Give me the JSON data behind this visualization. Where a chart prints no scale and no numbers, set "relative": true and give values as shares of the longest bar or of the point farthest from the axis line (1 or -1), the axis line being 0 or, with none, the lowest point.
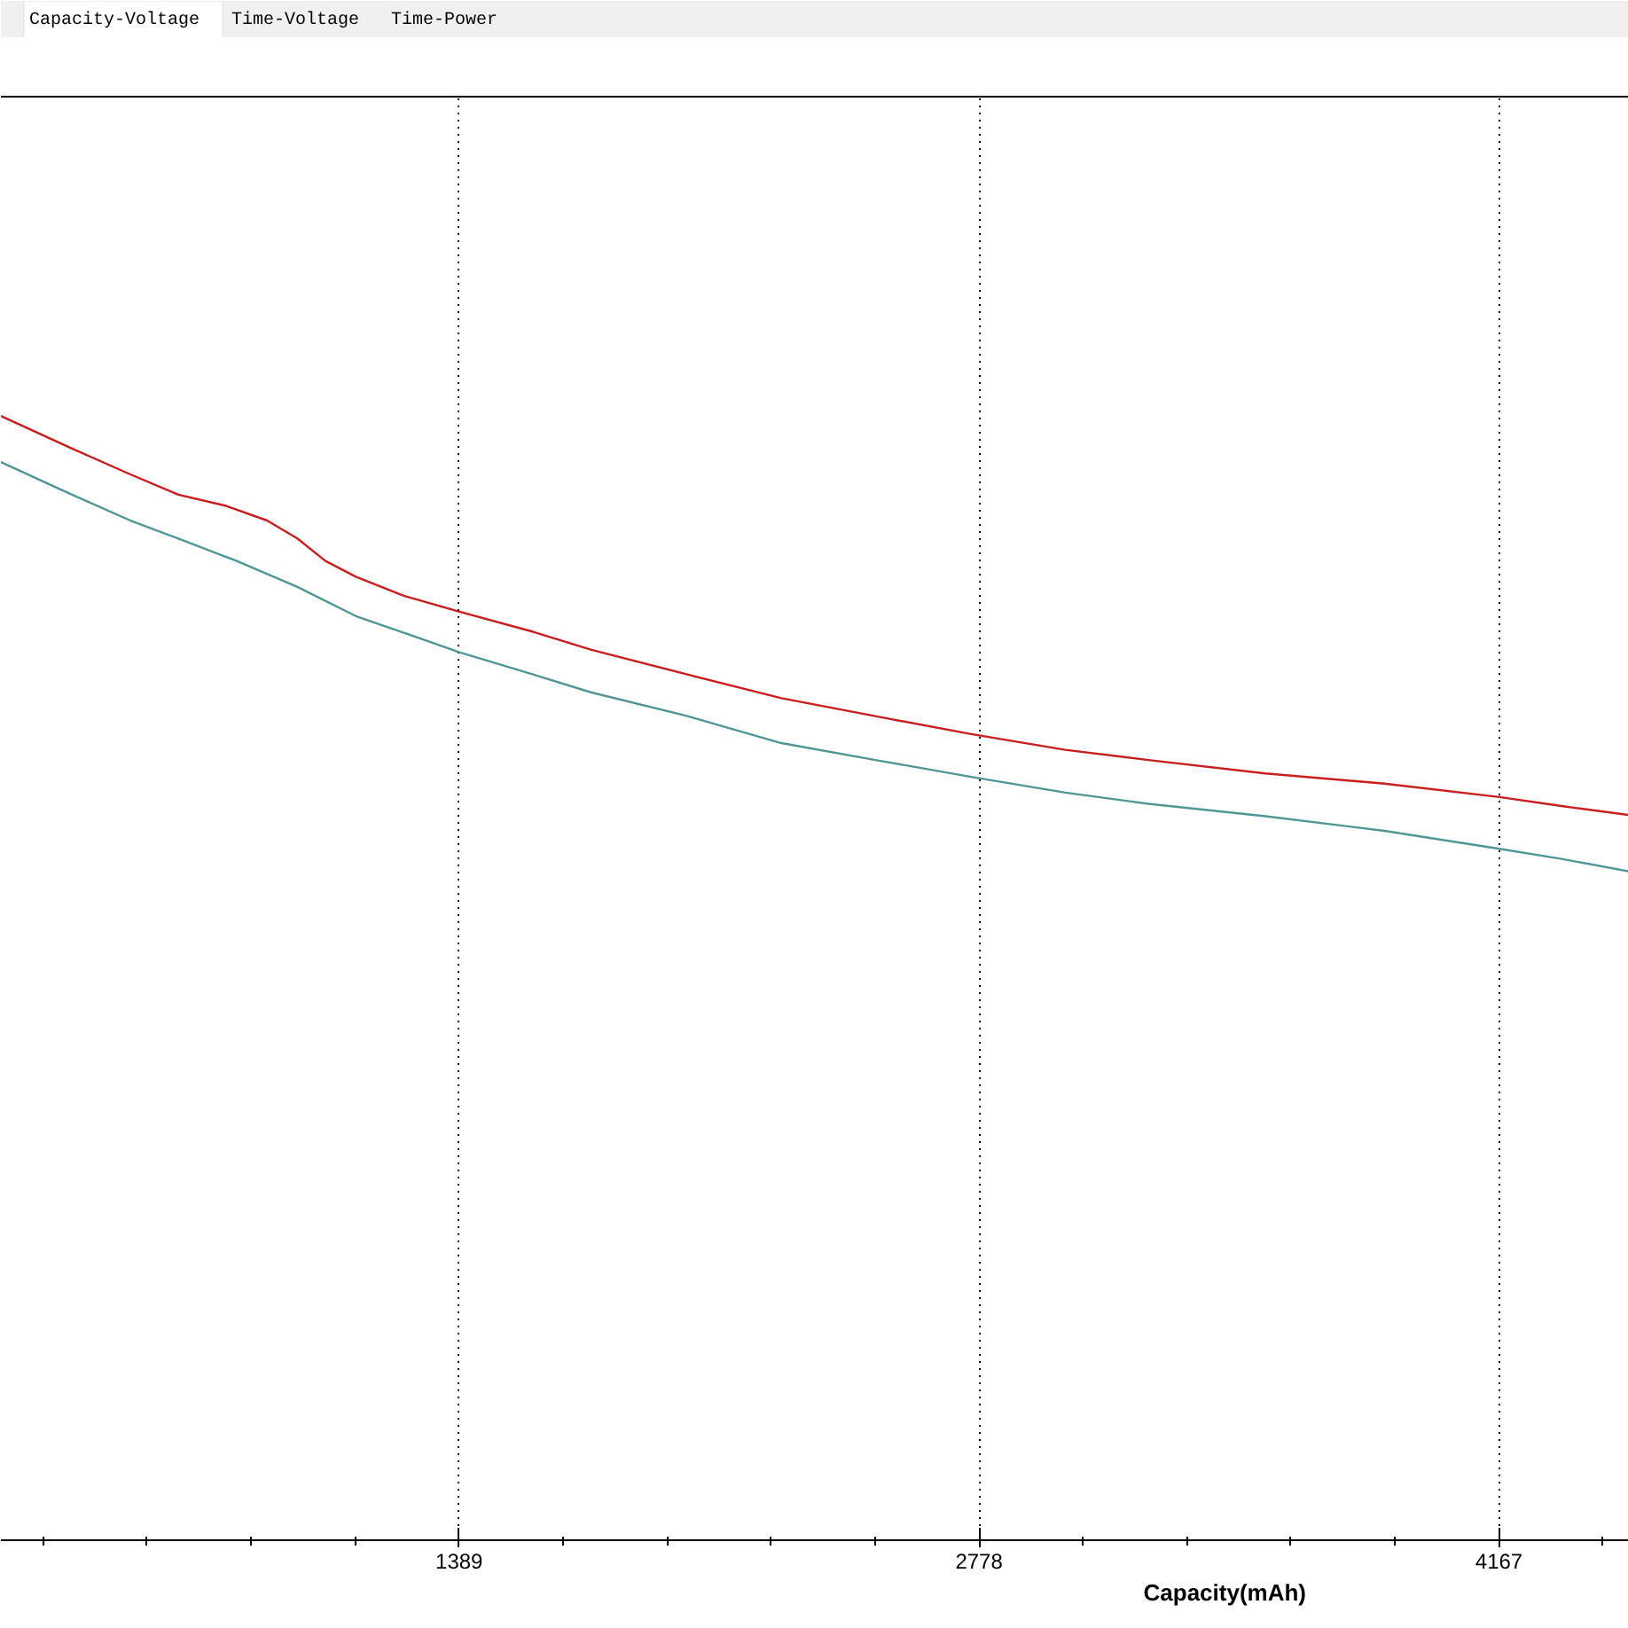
{
  "chart_data": {
    "type": "line",
    "relative": true,
    "annotations": [
      "Capacity-Voltage",
      "Time-Voltage",
      "Time-Power"
    ],
    "xlabel": "Capacity(mAh)",
    "xlim": [
      165,
      4514
    ],
    "xticks": [
      {
        "value": 277.8,
        "label": null
      },
      {
        "value": 555.6,
        "label": null
      },
      {
        "value": 833.4,
        "label": null
      },
      {
        "value": 1111.2,
        "label": null
      },
      1389,
      {
        "value": 1666.8,
        "label": null
      },
      {
        "value": 1944.6,
        "label": null
      },
      {
        "value": 2222.4,
        "label": null
      },
      {
        "value": 2500.2,
        "label": null
      },
      2778,
      {
        "value": 3055.8,
        "label": null
      },
      {
        "value": 3333.6,
        "label": null
      },
      {
        "value": 3611.4,
        "label": null
      },
      {
        "value": 3889.2,
        "label": null
      },
      4167,
      {
        "value": 4444.8,
        "label": null
      }
    ],
    "grid": "x",
    "series": [
      {
        "color": "#c81e1e",
        "x": [
          165,
          355,
          511,
          639,
          767,
          876,
          957,
          1032,
          1113,
          1241,
          1388,
          1587,
          1743,
          1999,
          2250,
          2501,
          2757,
          3008,
          3230,
          3543,
          3861,
          4168,
          4334,
          4514
        ],
        "values": [
          1.0,
          0.971,
          0.948,
          0.93,
          0.92,
          0.907,
          0.891,
          0.871,
          0.857,
          0.84,
          0.826,
          0.808,
          0.792,
          0.77,
          0.749,
          0.733,
          0.717,
          0.703,
          0.694,
          0.682,
          0.673,
          0.661,
          0.653,
          0.645
        ]
      },
      {
        "color": "#509696",
        "x": [
          165,
          355,
          511,
          639,
          795,
          957,
          1113,
          1269,
          1388,
          1587,
          1743,
          1999,
          2250,
          2501,
          2757,
          3008,
          3230,
          3543,
          3861,
          4168,
          4334,
          4514
        ],
        "values": [
          0.959,
          0.93,
          0.907,
          0.891,
          0.871,
          0.848,
          0.822,
          0.804,
          0.79,
          0.77,
          0.754,
          0.733,
          0.709,
          0.694,
          0.679,
          0.665,
          0.655,
          0.644,
          0.631,
          0.615,
          0.606,
          0.595
        ]
      }
    ]
  }
}
